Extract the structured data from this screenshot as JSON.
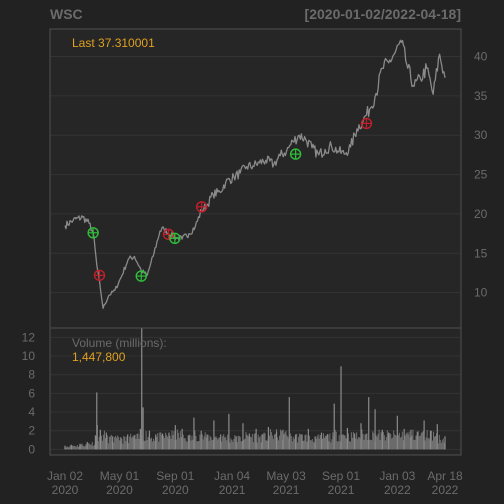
{
  "chart_data": {
    "type": "line",
    "title": "WSC",
    "date_range": "[2020-01-02/2022-04-18]",
    "last_label": "Last 37.310001",
    "price_axis": {
      "ticks": [
        10,
        15,
        20,
        25,
        30,
        35,
        40
      ],
      "ylim": [
        5.5,
        43.5
      ]
    },
    "price_series": {
      "x": [
        "2020-01-02",
        "2020-01-20",
        "2020-02-10",
        "2020-02-24",
        "2020-03-04",
        "2020-03-12",
        "2020-03-20",
        "2020-03-26",
        "2020-04-07",
        "2020-04-21",
        "2020-05-05",
        "2020-05-20",
        "2020-06-03",
        "2020-06-18",
        "2020-07-01",
        "2020-07-14",
        "2020-07-29",
        "2020-08-07",
        "2020-08-20",
        "2020-09-03",
        "2020-09-16",
        "2020-10-01",
        "2020-10-15",
        "2020-10-29",
        "2020-11-09",
        "2020-11-23",
        "2020-12-08",
        "2020-12-21",
        "2021-01-08",
        "2021-01-22",
        "2021-02-05",
        "2021-02-19",
        "2021-03-05",
        "2021-03-19",
        "2021-04-06",
        "2021-04-20",
        "2021-05-04",
        "2021-05-18",
        "2021-06-01",
        "2021-06-15",
        "2021-06-29",
        "2021-07-14",
        "2021-07-28",
        "2021-08-11",
        "2021-08-25",
        "2021-09-08",
        "2021-09-22",
        "2021-10-06",
        "2021-10-20",
        "2021-11-03",
        "2021-11-17",
        "2021-12-01",
        "2021-12-15",
        "2021-12-29",
        "2022-01-12",
        "2022-01-26",
        "2022-02-09",
        "2022-02-23",
        "2022-03-09",
        "2022-03-23",
        "2022-04-06",
        "2022-04-18"
      ],
      "y": [
        18.5,
        19.2,
        19.6,
        18.8,
        17.6,
        13.5,
        10.5,
        8.0,
        9.6,
        10.3,
        12.0,
        14.2,
        14.6,
        12.8,
        12.2,
        14.6,
        17.8,
        18.1,
        17.4,
        17.0,
        16.8,
        17.5,
        18.4,
        20.5,
        21.0,
        22.5,
        22.8,
        24.0,
        24.7,
        25.2,
        26.0,
        26.1,
        26.5,
        26.8,
        26.3,
        27.4,
        28.0,
        29.2,
        30.0,
        29.5,
        28.4,
        27.5,
        28.2,
        28.6,
        28.0,
        27.6,
        28.5,
        30.8,
        31.9,
        33.3,
        35.3,
        38.5,
        39.2,
        40.5,
        41.8,
        38.5,
        36.2,
        37.2,
        38.5,
        35.2,
        40.3,
        37.31
      ]
    },
    "signal_markers": [
      {
        "date": "2020-03-04",
        "value": 17.6,
        "type": "buy"
      },
      {
        "date": "2020-03-18",
        "value": 12.2,
        "type": "sell"
      },
      {
        "date": "2020-06-18",
        "value": 12.1,
        "type": "buy"
      },
      {
        "date": "2020-08-17",
        "value": 17.4,
        "type": "sell"
      },
      {
        "date": "2020-08-31",
        "value": 16.9,
        "type": "buy"
      },
      {
        "date": "2020-10-29",
        "value": 20.9,
        "type": "sell"
      },
      {
        "date": "2021-05-24",
        "value": 27.6,
        "type": "buy"
      },
      {
        "date": "2021-10-27",
        "value": 31.5,
        "type": "sell"
      }
    ],
    "volume_panel": {
      "label": "Volume (millions):",
      "last_value": "1,447,800",
      "ticks": [
        0,
        2,
        4,
        6,
        8,
        10,
        12
      ],
      "ylim": [
        -0.6,
        13.0
      ],
      "x": [
        "2020-01-02",
        "2020-01-16",
        "2020-02-04",
        "2020-02-20",
        "2020-03-09",
        "2020-03-12",
        "2020-03-13",
        "2020-03-20",
        "2020-04-02",
        "2020-04-16",
        "2020-05-04",
        "2020-05-19",
        "2020-06-02",
        "2020-06-16",
        "2020-06-19",
        "2020-06-22",
        "2020-07-06",
        "2020-07-20",
        "2020-08-04",
        "2020-08-18",
        "2020-09-01",
        "2020-09-16",
        "2020-10-01",
        "2020-10-12",
        "2020-10-28",
        "2020-11-10",
        "2020-11-25",
        "2020-12-10",
        "2020-12-28",
        "2021-01-13",
        "2021-01-28",
        "2021-02-11",
        "2021-02-26",
        "2021-03-11",
        "2021-03-25",
        "2021-04-12",
        "2021-04-26",
        "2021-05-10",
        "2021-05-24",
        "2021-06-07",
        "2021-06-21",
        "2021-07-06",
        "2021-07-20",
        "2021-08-03",
        "2021-08-17",
        "2021-09-01",
        "2021-09-15",
        "2021-10-01",
        "2021-10-15",
        "2021-11-01",
        "2021-11-15",
        "2021-12-01",
        "2021-12-15",
        "2022-01-03",
        "2022-01-18",
        "2022-02-02",
        "2022-02-16",
        "2022-03-03",
        "2022-03-17",
        "2022-04-01",
        "2022-04-18"
      ],
      "values": [
        0.4,
        0.5,
        0.6,
        0.8,
        1.5,
        6.1,
        2.6,
        2.1,
        1.8,
        1.4,
        1.3,
        1.6,
        1.5,
        2.2,
        13.0,
        4.5,
        2.0,
        1.6,
        1.7,
        1.8,
        2.6,
        2.2,
        1.5,
        3.4,
        2.0,
        1.6,
        3.1,
        1.6,
        3.8,
        1.4,
        2.8,
        1.7,
        2.2,
        1.6,
        2.4,
        1.9,
        2.1,
        5.6,
        1.6,
        1.6,
        2.2,
        1.4,
        1.8,
        1.6,
        4.9,
        8.9,
        2.3,
        1.7,
        2.8,
        5.6,
        4.3,
        2.1,
        1.8,
        3.6,
        2.2,
        2.1,
        1.9,
        3.1,
        2.0,
        2.7,
        1.4
      ]
    },
    "x_axis": {
      "ticks": [
        {
          "date": "2020-01-02",
          "line1": "Jan 02",
          "line2": "2020"
        },
        {
          "date": "2020-05-01",
          "line1": "May 01",
          "line2": "2020"
        },
        {
          "date": "2020-09-01",
          "line1": "Sep 01",
          "line2": "2020"
        },
        {
          "date": "2021-01-04",
          "line1": "Jan 04",
          "line2": "2021"
        },
        {
          "date": "2021-05-03",
          "line1": "May 03",
          "line2": "2021"
        },
        {
          "date": "2021-09-01",
          "line1": "Sep 01",
          "line2": "2021"
        },
        {
          "date": "2022-01-03",
          "line1": "Jan 03",
          "line2": "2022"
        },
        {
          "date": "2022-04-18",
          "line1": "Apr 18",
          "line2": "2022"
        }
      ]
    },
    "colors": {
      "background": "#222222",
      "panel": "#262626",
      "frame": "#505050",
      "grid": "#333333",
      "text": "#6b6b6b",
      "line": "#8a8a8a",
      "annotation": "#e0a020",
      "buy": "#2fbf3a",
      "sell": "#c0202a",
      "volume": "#8c8c8c"
    }
  }
}
